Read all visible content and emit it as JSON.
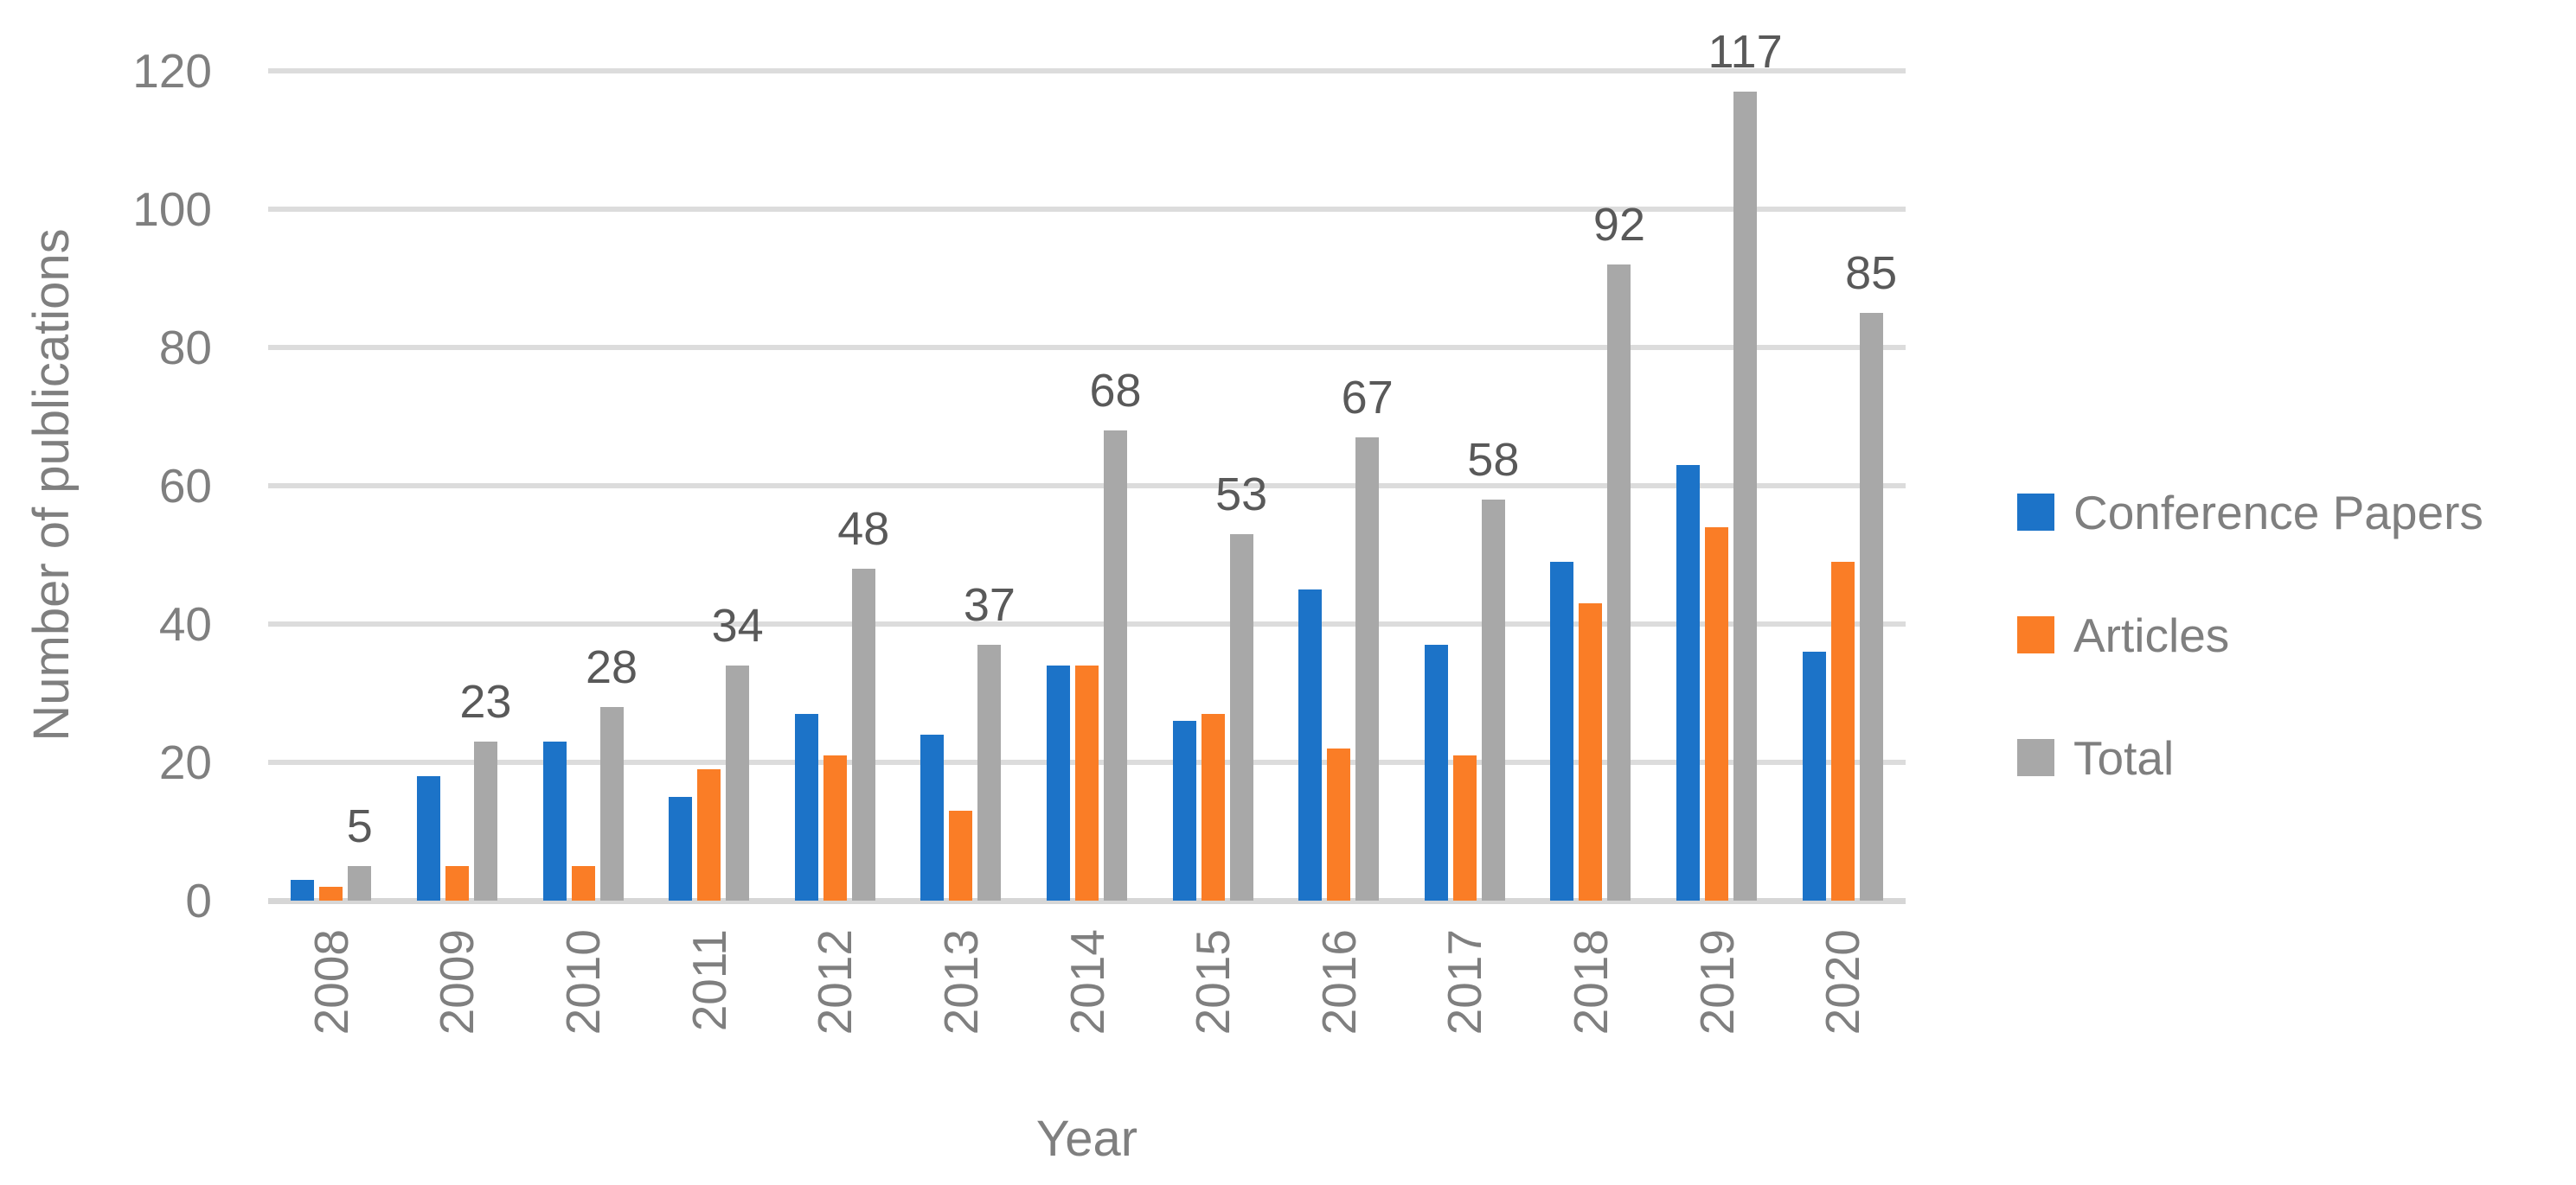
{
  "chart_data": {
    "type": "bar",
    "title": "",
    "xlabel": "Year",
    "ylabel": "Number of publications",
    "categories": [
      "2008",
      "2009",
      "2010",
      "2011",
      "2012",
      "2013",
      "2014",
      "2015",
      "2016",
      "2017",
      "2018",
      "2019",
      "2020"
    ],
    "series": [
      {
        "name": "Conference Papers",
        "color": "#1C73C8",
        "values": [
          3,
          18,
          23,
          15,
          27,
          24,
          34,
          26,
          45,
          37,
          49,
          63,
          36
        ]
      },
      {
        "name": "Articles",
        "color": "#FA7D26",
        "values": [
          2,
          5,
          5,
          19,
          21,
          13,
          34,
          27,
          22,
          21,
          43,
          54,
          49
        ]
      },
      {
        "name": "Total",
        "color": "#A8A8A8",
        "values": [
          5,
          23,
          28,
          34,
          48,
          37,
          68,
          53,
          67,
          58,
          92,
          117,
          85
        ]
      }
    ],
    "data_labels": {
      "series": "Total",
      "values": [
        "5",
        "23",
        "28",
        "34",
        "48",
        "37",
        "68",
        "53",
        "67",
        "58",
        "92",
        "117",
        "85"
      ]
    },
    "ylim": [
      0,
      120
    ],
    "yticks": [
      "0",
      "20",
      "40",
      "60",
      "80",
      "100",
      "120"
    ],
    "grid": "horizontal",
    "legend_position": "right"
  },
  "legend": {
    "items": [
      {
        "label": "Conference Papers",
        "color": "#1C73C8"
      },
      {
        "label": "Articles",
        "color": "#FA7D26"
      },
      {
        "label": "Total",
        "color": "#A8A8A8"
      }
    ]
  },
  "colors": {
    "background": "#FFFFFF",
    "gridline": "#DCDCDC",
    "axis_text": "#7F7F7F",
    "data_label_text": "#595959"
  }
}
